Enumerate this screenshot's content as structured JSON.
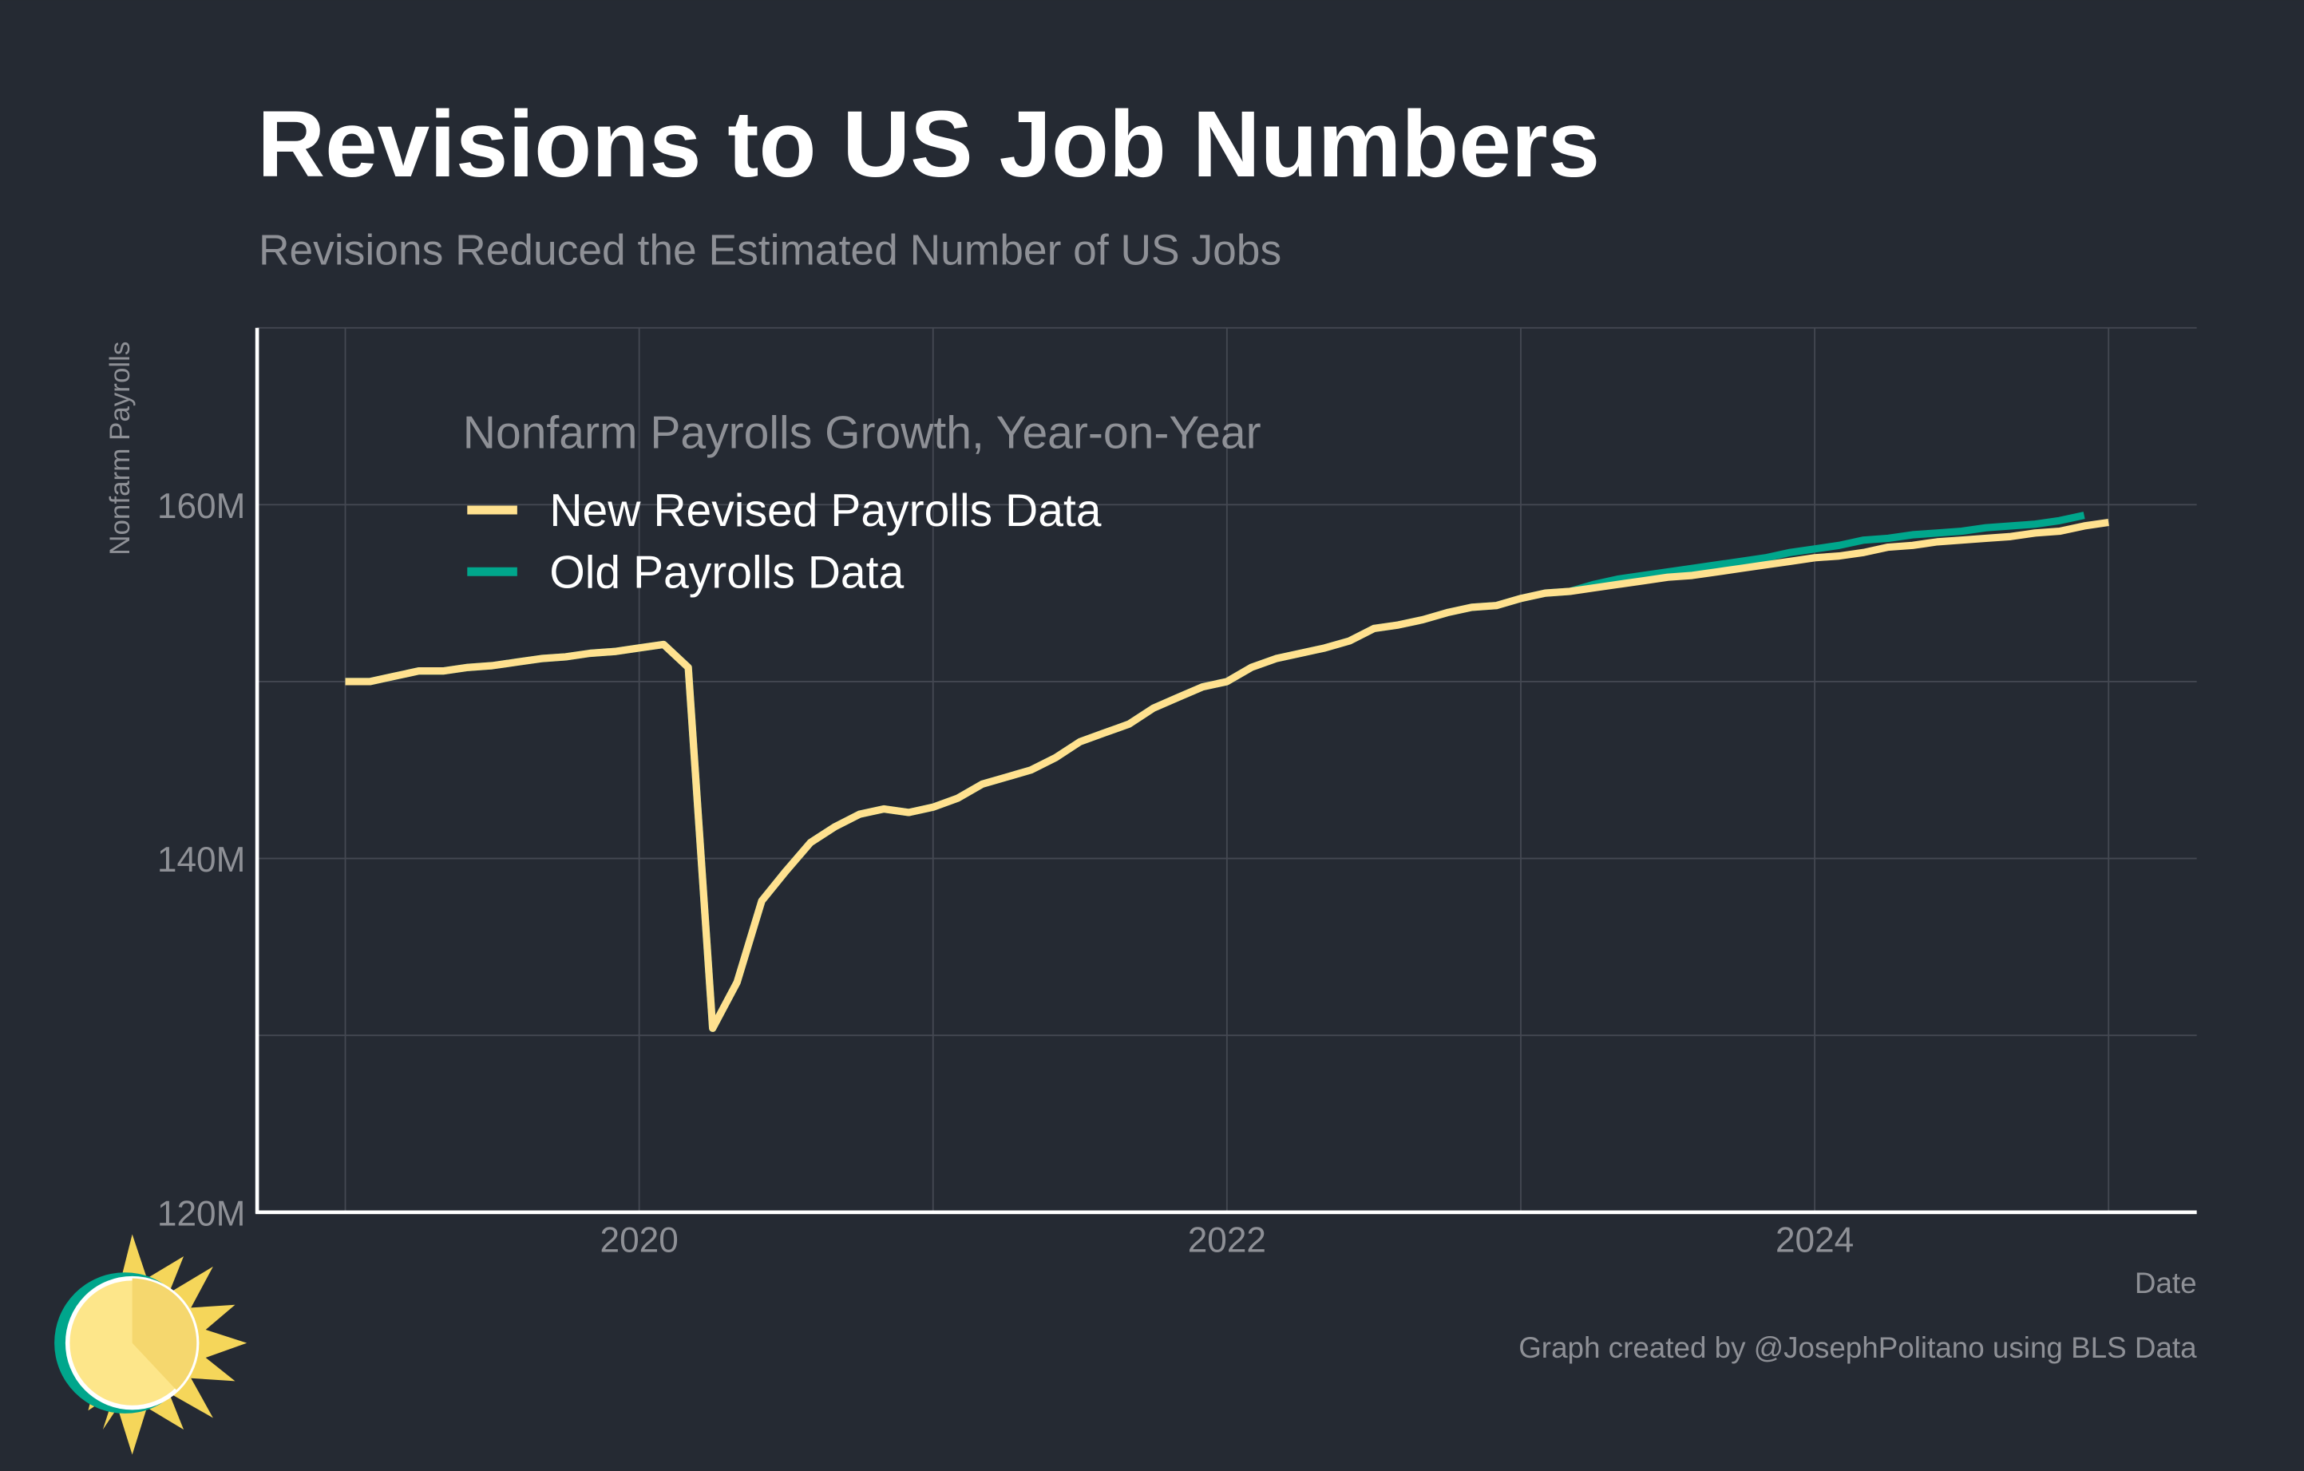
{
  "chart_data": {
    "type": "line",
    "title": "Revisions to US Job Numbers",
    "subtitle": "Revisions Reduced the Estimated Number of US Jobs",
    "y_label": "Nonfarm Payrolls",
    "x_label": "Date",
    "legend_title": "Nonfarm Payrolls Growth, Year-on-Year",
    "caption": "Graph created by @JosephPolitano using BLS Data",
    "x": [
      2019,
      2019.083,
      2019.167,
      2019.25,
      2019.333,
      2019.417,
      2019.5,
      2019.583,
      2019.667,
      2019.75,
      2019.833,
      2019.917,
      2020,
      2020.083,
      2020.167,
      2020.25,
      2020.333,
      2020.417,
      2020.5,
      2020.583,
      2020.667,
      2020.75,
      2020.833,
      2020.917,
      2021,
      2021.083,
      2021.167,
      2021.25,
      2021.333,
      2021.417,
      2021.5,
      2021.583,
      2021.667,
      2021.75,
      2021.833,
      2021.917,
      2022,
      2022.083,
      2022.167,
      2022.25,
      2022.333,
      2022.417,
      2022.5,
      2022.583,
      2022.667,
      2022.75,
      2022.833,
      2022.917,
      2023,
      2023.083,
      2023.167,
      2023.25,
      2023.333,
      2023.417,
      2023.5,
      2023.583,
      2023.667,
      2023.75,
      2023.833,
      2023.917,
      2024,
      2024.083,
      2024.167,
      2024.25,
      2024.333,
      2024.417,
      2024.5,
      2024.583,
      2024.667,
      2024.75,
      2024.833,
      2024.917,
      2025
    ],
    "series": [
      {
        "name": "Old Payrolls Data",
        "color": "#00a68c",
        "values": [
          150.0,
          150.0,
          150.3,
          150.6,
          150.6,
          150.8,
          150.9,
          151.1,
          151.3,
          151.4,
          151.6,
          151.7,
          151.9,
          152.1,
          150.8,
          130.4,
          133.0,
          137.6,
          139.3,
          140.9,
          141.8,
          142.5,
          142.8,
          142.6,
          142.9,
          143.4,
          144.2,
          144.6,
          145.0,
          145.7,
          146.6,
          147.1,
          147.6,
          148.5,
          149.1,
          149.7,
          150.0,
          150.8,
          151.3,
          151.6,
          151.9,
          152.3,
          153.0,
          153.2,
          153.5,
          153.9,
          154.2,
          154.3,
          154.7,
          155.0,
          155.1,
          155.5,
          155.8,
          156.0,
          156.2,
          156.4,
          156.6,
          156.8,
          157.0,
          157.3,
          157.5,
          157.7,
          158.0,
          158.1,
          158.3,
          158.4,
          158.5,
          158.7,
          158.8,
          158.9,
          159.1,
          159.4,
          null
        ]
      },
      {
        "name": "New Revised Payrolls Data",
        "color": "#ffe18f",
        "values": [
          150.0,
          150.0,
          150.3,
          150.6,
          150.6,
          150.8,
          150.9,
          151.1,
          151.3,
          151.4,
          151.6,
          151.7,
          151.9,
          152.1,
          150.8,
          130.4,
          133.0,
          137.6,
          139.3,
          140.9,
          141.8,
          142.5,
          142.8,
          142.6,
          142.9,
          143.4,
          144.2,
          144.6,
          145.0,
          145.7,
          146.6,
          147.1,
          147.6,
          148.5,
          149.1,
          149.7,
          150.0,
          150.8,
          151.3,
          151.6,
          151.9,
          152.3,
          153.0,
          153.2,
          153.5,
          153.9,
          154.2,
          154.3,
          154.7,
          155.0,
          155.1,
          155.3,
          155.5,
          155.7,
          155.9,
          156.0,
          156.2,
          156.4,
          156.6,
          156.8,
          157.0,
          157.1,
          157.3,
          157.6,
          157.7,
          157.9,
          158.0,
          158.1,
          158.2,
          158.4,
          158.5,
          158.8,
          159.0
        ]
      }
    ],
    "legend_order": [
      1,
      0
    ],
    "xlim": [
      2018.7,
      2025.3
    ],
    "xticks": [
      2020,
      2022,
      2024
    ],
    "minor_xticks": [
      2019,
      2021,
      2023,
      2025
    ],
    "ylim": [
      120,
      170
    ],
    "yticks": [
      {
        "value": 120,
        "label": "120M"
      },
      {
        "value": 140,
        "label": "140M"
      },
      {
        "value": 160,
        "label": "160M"
      }
    ],
    "minor_yticks": [
      130,
      150,
      170
    ],
    "grid": true
  }
}
